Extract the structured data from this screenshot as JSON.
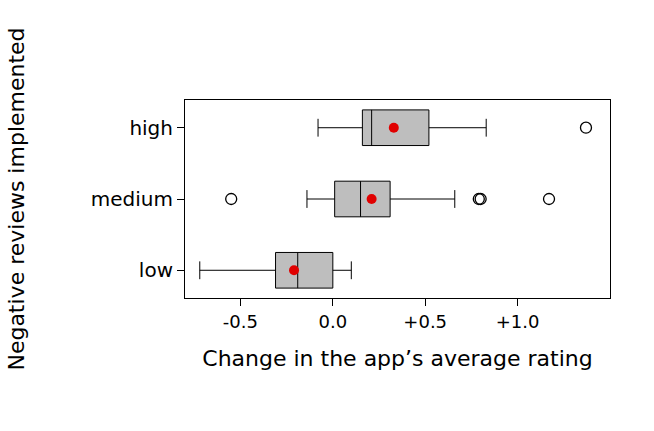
{
  "chart_data": {
    "type": "box",
    "orientation": "horizontal",
    "xlabel": "Change in the app’s average rating",
    "ylabel": "Negative reviews implemented",
    "categories": [
      "low",
      "medium",
      "high"
    ],
    "q1": [
      -0.31,
      0.01,
      0.16
    ],
    "median": [
      -0.19,
      0.15,
      0.21
    ],
    "q3": [
      0.0,
      0.31,
      0.52
    ],
    "whisker_low": [
      -0.72,
      -0.14,
      -0.08
    ],
    "whisker_high": [
      0.1,
      0.66,
      0.83
    ],
    "mean": [
      -0.21,
      0.21,
      0.33
    ],
    "outliers": [
      [],
      [
        -0.55,
        0.79,
        0.8,
        1.17
      ],
      [
        1.37
      ]
    ],
    "color": "#bebebe",
    "xlim": [
      -0.8,
      1.5
    ],
    "xticks": [
      {
        "value": -0.5,
        "label": "-0.5"
      },
      {
        "value": 0.0,
        "label": "0.0"
      },
      {
        "value": 0.5,
        "label": "+0.5"
      },
      {
        "value": 1.0,
        "label": "+1.0"
      }
    ],
    "grid": false
  }
}
